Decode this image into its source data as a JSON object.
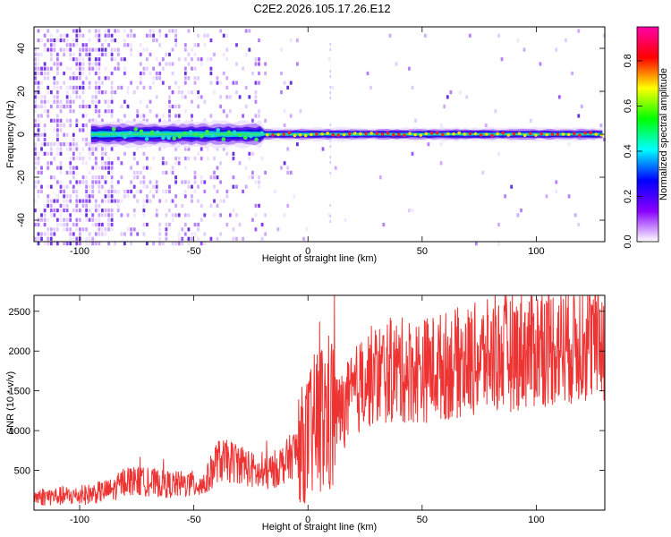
{
  "title": "C2E2.2026.105.17.26.E12",
  "chart_data": [
    {
      "type": "heatmap",
      "xlabel": "Height of straight line (km)",
      "ylabel": "Frequency (Hz)",
      "xlim": [
        -120,
        130
      ],
      "ylim": [
        -50,
        50
      ],
      "xticks": [
        -100,
        -50,
        0,
        50,
        100
      ],
      "yticks": [
        -40,
        -20,
        0,
        20,
        40
      ],
      "xtick_labels": [
        "-100",
        "-50",
        "0",
        "50",
        "100"
      ],
      "ytick_labels": [
        "-40",
        "-20",
        "0",
        "20",
        "40"
      ],
      "colorbar": {
        "label": "Normalized spectral amplitude",
        "range": [
          0,
          0.95
        ],
        "ticks": [
          0.0,
          0.2,
          0.4,
          0.6,
          0.8
        ],
        "tick_labels": [
          "0.0",
          "0.2",
          "0.4",
          "0.6",
          "0.8"
        ],
        "colormap": [
          "#ffffff",
          "#8800ff",
          "#0000ff",
          "#00ffff",
          "#00ff00",
          "#ffff00",
          "#ff0000",
          "#ff00aa"
        ]
      },
      "ridge": {
        "description_values": "dominant frequency ~0 Hz across all heights",
        "x_start": -95,
        "x_end": 130,
        "frequency": 0,
        "band_halfwidth_near": 6,
        "band_halfwidth_far": 3
      }
    },
    {
      "type": "line",
      "xlabel": "Height of straight line (km)",
      "ylabel": "SNR (10 * v/v)",
      "xlim": [
        -120,
        130
      ],
      "ylim": [
        0,
        2700
      ],
      "xticks": [
        -100,
        -50,
        0,
        50,
        100
      ],
      "yticks": [
        500,
        1000,
        1500,
        2000,
        2500
      ],
      "xtick_labels": [
        "-100",
        "-50",
        "0",
        "50",
        "100"
      ],
      "ytick_labels": [
        "500",
        "1000",
        "1500",
        "2000",
        "2500"
      ],
      "series": [
        {
          "color": "#ee3333",
          "x": [
            -120,
            -100,
            -85,
            -80,
            -60,
            -45,
            -40,
            -30,
            -20,
            -10,
            0,
            5,
            10,
            15,
            25,
            35,
            50,
            75,
            100,
            130
          ],
          "y": [
            170,
            180,
            260,
            380,
            320,
            330,
            620,
            600,
            420,
            600,
            900,
            1150,
            1200,
            1250,
            1650,
            1750,
            1760,
            1900,
            2050,
            2150
          ]
        }
      ]
    }
  ]
}
